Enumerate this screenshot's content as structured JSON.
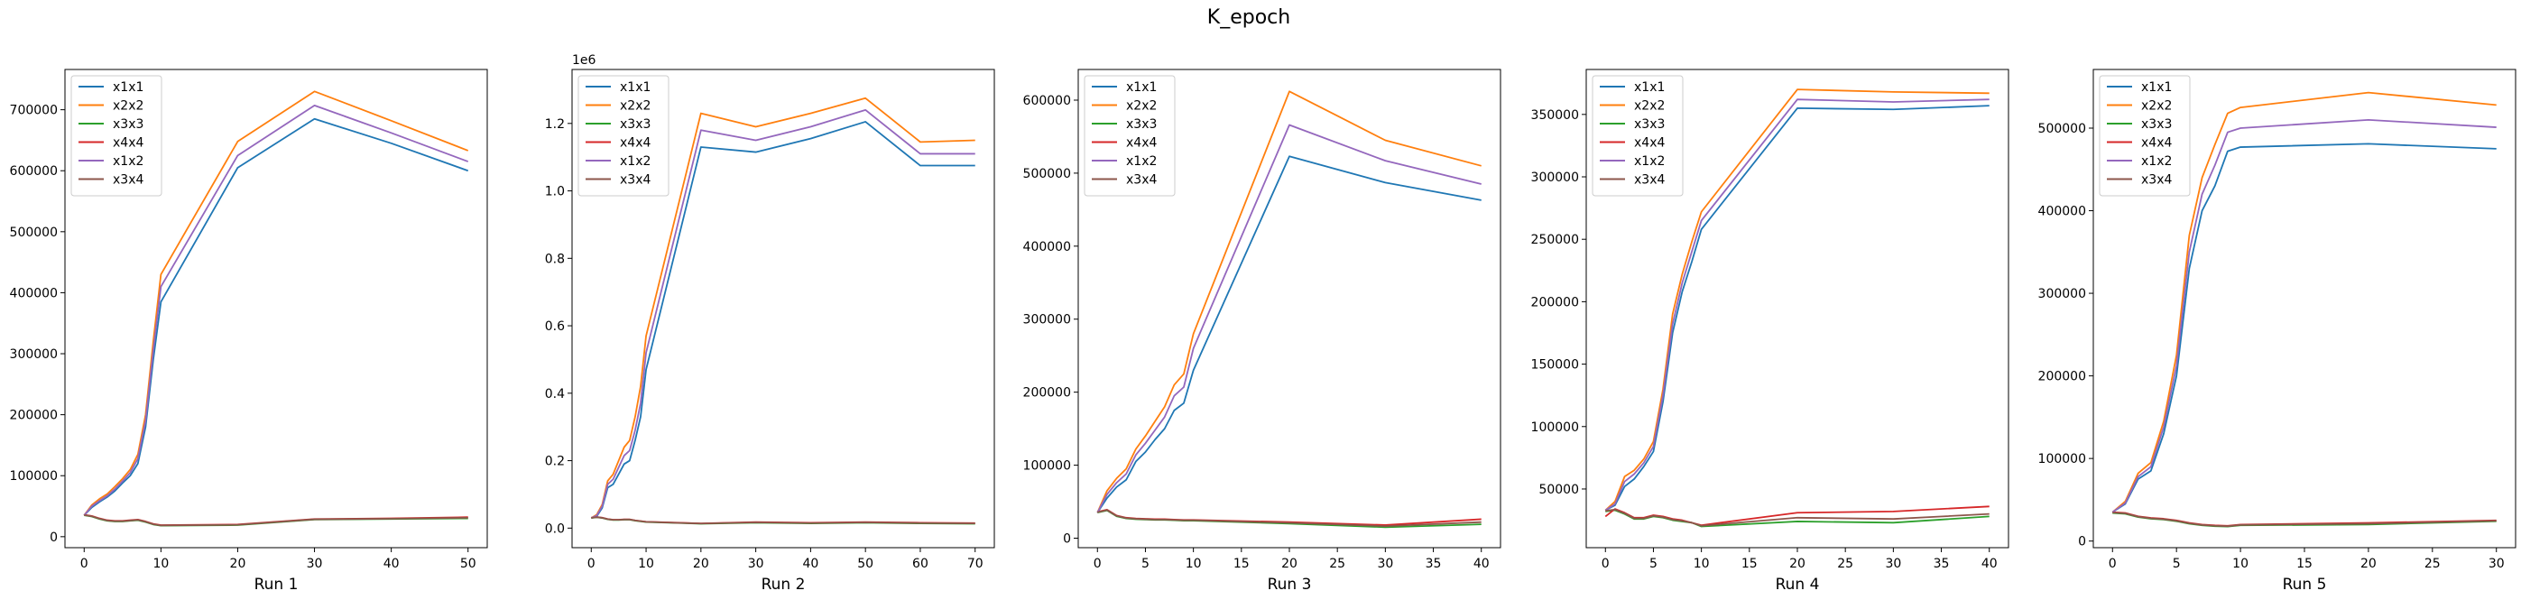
{
  "figure": {
    "title": "K_epoch"
  },
  "colors": {
    "x1x1": "#1f77b4",
    "x2x2": "#ff7f0e",
    "x3x3": "#2ca02c",
    "x4x4": "#d62728",
    "x1x2": "#9467bd",
    "x3x4": "#8c564b"
  },
  "chart_data": [
    {
      "type": "line",
      "xlabel": "Run 1",
      "xlim": [
        -2.5,
        52.5
      ],
      "ylim": [
        -18000,
        766000
      ],
      "xticks": [
        0,
        10,
        20,
        30,
        40,
        50
      ],
      "yticks": [
        0,
        100000,
        200000,
        300000,
        400000,
        500000,
        600000,
        700000
      ],
      "y_offset": "",
      "legend_position": "upper-left",
      "x": [
        0,
        1,
        2,
        3,
        4,
        5,
        6,
        7,
        8,
        9,
        10,
        20,
        30,
        40,
        50
      ],
      "series": [
        {
          "name": "x1x1",
          "values": [
            35000,
            48000,
            57000,
            65000,
            75000,
            88000,
            100000,
            120000,
            180000,
            290000,
            385000,
            605000,
            685000,
            645000,
            600000
          ]
        },
        {
          "name": "x2x2",
          "values": [
            35000,
            52000,
            62000,
            70000,
            82000,
            95000,
            110000,
            135000,
            200000,
            320000,
            430000,
            648000,
            730000,
            682000,
            633000
          ]
        },
        {
          "name": "x3x3",
          "values": [
            35000,
            33000,
            29000,
            26000,
            25000,
            25000,
            26000,
            27000,
            24000,
            20000,
            18000,
            19000,
            28000,
            29000,
            30000
          ]
        },
        {
          "name": "x4x4",
          "values": [
            36000,
            34000,
            30000,
            27000,
            26000,
            26000,
            27000,
            28000,
            25000,
            21000,
            19000,
            20000,
            29000,
            30000,
            32000
          ]
        },
        {
          "name": "x1x2",
          "values": [
            35000,
            50000,
            59000,
            67000,
            78000,
            91000,
            105000,
            128000,
            190000,
            305000,
            410000,
            625000,
            707000,
            662000,
            615000
          ]
        },
        {
          "name": "x3x4",
          "values": [
            35500,
            33500,
            29500,
            26500,
            25500,
            25500,
            26500,
            27500,
            24500,
            20500,
            18500,
            19500,
            28500,
            29500,
            31000
          ]
        }
      ]
    },
    {
      "type": "line",
      "xlabel": "Run 2",
      "xlim": [
        -3.5,
        73.5
      ],
      "ylim": [
        -0.058,
        1.36
      ],
      "xticks": [
        0,
        10,
        20,
        30,
        40,
        50,
        60,
        70
      ],
      "yticks": [
        0.0,
        0.2,
        0.4,
        0.6,
        0.8,
        1.0,
        1.2
      ],
      "ytick_labels": [
        "0.0",
        "0.2",
        "0.4",
        "0.6",
        "0.8",
        "1.0",
        "1.2"
      ],
      "y_offset": "1e6",
      "legend_position": "upper-left",
      "x": [
        0,
        1,
        2,
        3,
        4,
        5,
        6,
        7,
        8,
        9,
        10,
        20,
        30,
        40,
        50,
        60,
        70
      ],
      "series": [
        {
          "name": "x1x1",
          "values": [
            0.03,
            0.035,
            0.06,
            0.12,
            0.13,
            0.16,
            0.19,
            0.2,
            0.26,
            0.33,
            0.47,
            1.13,
            1.115,
            1.155,
            1.205,
            1.075,
            1.075
          ]
        },
        {
          "name": "x2x2",
          "values": [
            0.03,
            0.04,
            0.07,
            0.14,
            0.16,
            0.2,
            0.24,
            0.26,
            0.33,
            0.42,
            0.57,
            1.23,
            1.19,
            1.23,
            1.275,
            1.145,
            1.15
          ]
        },
        {
          "name": "x3x3",
          "values": [
            0.03,
            0.032,
            0.03,
            0.026,
            0.024,
            0.024,
            0.025,
            0.025,
            0.022,
            0.02,
            0.018,
            0.013,
            0.016,
            0.014,
            0.016,
            0.014,
            0.013
          ]
        },
        {
          "name": "x4x4",
          "values": [
            0.031,
            0.033,
            0.031,
            0.027,
            0.025,
            0.025,
            0.026,
            0.026,
            0.023,
            0.021,
            0.019,
            0.014,
            0.018,
            0.016,
            0.018,
            0.016,
            0.015
          ]
        },
        {
          "name": "x1x2",
          "values": [
            0.03,
            0.037,
            0.065,
            0.13,
            0.145,
            0.18,
            0.215,
            0.23,
            0.29,
            0.37,
            0.52,
            1.18,
            1.15,
            1.19,
            1.24,
            1.11,
            1.11
          ]
        },
        {
          "name": "x3x4",
          "values": [
            0.0305,
            0.0325,
            0.0305,
            0.0265,
            0.0245,
            0.0245,
            0.0255,
            0.0255,
            0.0225,
            0.0205,
            0.0185,
            0.0135,
            0.017,
            0.015,
            0.017,
            0.015,
            0.014
          ]
        }
      ]
    },
    {
      "type": "line",
      "xlabel": "Run 3",
      "xlim": [
        -2,
        42
      ],
      "ylim": [
        -13000,
        642000
      ],
      "xticks": [
        0,
        5,
        10,
        15,
        20,
        25,
        30,
        35,
        40
      ],
      "yticks": [
        0,
        100000,
        200000,
        300000,
        400000,
        500000,
        600000
      ],
      "y_offset": "",
      "legend_position": "upper-left",
      "x": [
        0,
        1,
        2,
        3,
        4,
        5,
        6,
        7,
        8,
        9,
        10,
        20,
        30,
        40
      ],
      "series": [
        {
          "name": "x1x1",
          "values": [
            35000,
            55000,
            70000,
            80000,
            105000,
            118000,
            135000,
            150000,
            175000,
            185000,
            230000,
            523000,
            487000,
            463000
          ]
        },
        {
          "name": "x2x2",
          "values": [
            35000,
            65000,
            82000,
            95000,
            122000,
            140000,
            160000,
            180000,
            210000,
            225000,
            280000,
            612000,
            545000,
            510000
          ]
        },
        {
          "name": "x3x3",
          "values": [
            35000,
            38000,
            30000,
            27000,
            26000,
            25500,
            25000,
            25000,
            24500,
            24000,
            24000,
            20000,
            15000,
            19000
          ]
        },
        {
          "name": "x4x4",
          "values": [
            36000,
            39000,
            31000,
            28000,
            27000,
            26500,
            26000,
            26000,
            25500,
            25000,
            25000,
            22000,
            18000,
            26000
          ]
        },
        {
          "name": "x1x2",
          "values": [
            35000,
            60000,
            76000,
            88000,
            114000,
            130000,
            148000,
            166000,
            195000,
            207000,
            260000,
            566000,
            517000,
            485000
          ]
        },
        {
          "name": "x3x4",
          "values": [
            35500,
            38500,
            30500,
            27500,
            26500,
            26000,
            25500,
            25500,
            25000,
            24500,
            24500,
            21000,
            16500,
            22000
          ]
        }
      ]
    },
    {
      "type": "line",
      "xlabel": "Run 4",
      "xlim": [
        -2,
        42
      ],
      "ylim": [
        3000,
        386000
      ],
      "xticks": [
        0,
        5,
        10,
        15,
        20,
        25,
        30,
        35,
        40
      ],
      "yticks": [
        50000,
        100000,
        150000,
        200000,
        250000,
        300000,
        350000
      ],
      "y_offset": "",
      "legend_position": "upper-left",
      "x": [
        0,
        1,
        2,
        3,
        4,
        5,
        6,
        7,
        8,
        9,
        10,
        20,
        30,
        40
      ],
      "series": [
        {
          "name": "x1x1",
          "values": [
            33000,
            37000,
            52000,
            58000,
            68000,
            80000,
            120000,
            175000,
            208000,
            232000,
            258000,
            355000,
            354000,
            357000
          ]
        },
        {
          "name": "x2x2",
          "values": [
            33000,
            40000,
            60000,
            65000,
            74000,
            88000,
            130000,
            190000,
            222000,
            248000,
            272000,
            370000,
            368000,
            367000
          ]
        },
        {
          "name": "x3x3",
          "values": [
            32000,
            33000,
            30000,
            26000,
            26000,
            28000,
            27000,
            25000,
            24000,
            23000,
            20000,
            24000,
            23000,
            28000
          ]
        },
        {
          "name": "x4x4",
          "values": [
            28000,
            34000,
            31000,
            27000,
            27000,
            29000,
            28000,
            26000,
            25000,
            23000,
            21000,
            31000,
            32000,
            36000
          ]
        },
        {
          "name": "x1x2",
          "values": [
            33000,
            38000,
            56000,
            62000,
            71000,
            84000,
            125000,
            182000,
            215000,
            240000,
            265000,
            362000,
            360000,
            362000
          ]
        },
        {
          "name": "x3x4",
          "values": [
            32500,
            33500,
            30500,
            26500,
            26500,
            28500,
            27500,
            25500,
            24500,
            23000,
            20500,
            27000,
            26000,
            30000
          ]
        }
      ]
    },
    {
      "type": "line",
      "xlabel": "Run 5",
      "xlim": [
        -1.5,
        31.5
      ],
      "ylim": [
        -8000,
        571000
      ],
      "xticks": [
        0,
        5,
        10,
        15,
        20,
        25,
        30
      ],
      "yticks": [
        0,
        100000,
        200000,
        300000,
        400000,
        500000
      ],
      "y_offset": "",
      "legend_position": "upper-left",
      "x": [
        0,
        1,
        2,
        3,
        4,
        5,
        6,
        7,
        8,
        9,
        10,
        20,
        30
      ],
      "series": [
        {
          "name": "x1x1",
          "values": [
            35000,
            45000,
            75000,
            85000,
            130000,
            200000,
            330000,
            400000,
            430000,
            472000,
            477000,
            481000,
            475000
          ]
        },
        {
          "name": "x2x2",
          "values": [
            35000,
            48000,
            82000,
            95000,
            145000,
            225000,
            370000,
            440000,
            480000,
            518000,
            525000,
            543000,
            528000
          ]
        },
        {
          "name": "x3x3",
          "values": [
            34000,
            33000,
            29000,
            27000,
            26000,
            24000,
            21000,
            19000,
            18000,
            17500,
            19000,
            20000,
            24000
          ]
        },
        {
          "name": "x4x4",
          "values": [
            35000,
            34000,
            30000,
            28000,
            27000,
            25000,
            22000,
            20000,
            19000,
            18500,
            20000,
            22000,
            25000
          ]
        },
        {
          "name": "x1x2",
          "values": [
            35000,
            46000,
            78000,
            90000,
            138000,
            212000,
            350000,
            420000,
            455000,
            495000,
            500000,
            510000,
            501000
          ]
        },
        {
          "name": "x3x4",
          "values": [
            34500,
            33500,
            29500,
            27500,
            26500,
            24500,
            21500,
            19500,
            18500,
            18000,
            19500,
            21000,
            24500
          ]
        }
      ]
    }
  ]
}
